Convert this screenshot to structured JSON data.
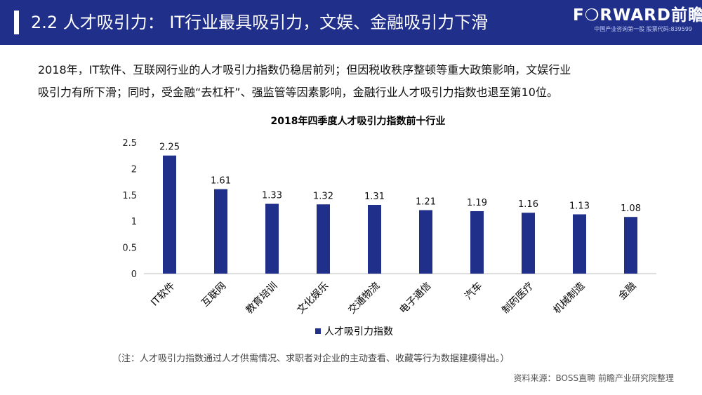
{
  "header": {
    "title": "2.2 人才吸引力： IT行业最具吸引力，文娱、金融吸引力下滑",
    "logo_text": "F❍RWARD前瞻",
    "logo_subtext": "中国产业咨询第一股  股票代码:839599"
  },
  "body": {
    "line1": "2018年，IT软件、互联网行业的人才吸引力指数仍稳居前列；但因税收秩序整顿等重大政策影响，文娱行业",
    "line2": "吸引力有所下滑；同时，受金融“去杠杆”、强监管等因素影响，金融行业人才吸引力指数也退至第10位。"
  },
  "note": "（注：人才吸引力指数通过人才供需情况、求职者对企业的主动查看、收藏等行为数据建模得出。）",
  "source": "资料来源：BOSS直聘 前瞻产业研究院整理",
  "colors": {
    "header_bg": "#1f2f8a",
    "bar": "#1f2f8a",
    "text": "#111111"
  },
  "chart_data": {
    "type": "bar",
    "title": "2018年四季度人才吸引力指数前十行业",
    "categories": [
      "IT软件",
      "互联网",
      "教育培训",
      "文化娱乐",
      "交通物流",
      "电子通信",
      "汽车",
      "制药医疗",
      "机械制造",
      "金融"
    ],
    "series": [
      {
        "name": "人才吸引力指数",
        "values": [
          2.25,
          1.61,
          1.33,
          1.32,
          1.31,
          1.21,
          1.19,
          1.16,
          1.13,
          1.08
        ]
      }
    ],
    "data_labels": [
      "2.25",
      "1.61",
      "1.33",
      "1.32",
      "1.31",
      "1.21",
      "1.19",
      "1.16",
      "1.13",
      "1.08"
    ],
    "y_ticks": [
      "0",
      "0.5",
      "1",
      "1.5",
      "2",
      "2.5"
    ],
    "ylim": [
      0,
      2.5
    ],
    "xlabel": "",
    "ylabel": "",
    "grid": false,
    "legend_position": "bottom",
    "category_label_rotation": "rotated"
  }
}
